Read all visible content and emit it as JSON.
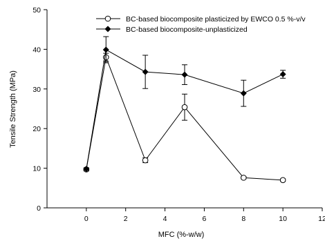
{
  "chart_data": {
    "type": "line",
    "title": "",
    "xlabel": "MFC (%-w/w)",
    "ylabel": "Tensile Strength (MPa)",
    "xlim": [
      -2,
      12
    ],
    "ylim": [
      0,
      50
    ],
    "xticks": [
      0,
      2,
      4,
      6,
      8,
      10,
      12
    ],
    "yticks": [
      0,
      10,
      20,
      30,
      40,
      50
    ],
    "x_tick_labels": [
      "0",
      "2",
      "4",
      "6",
      "8",
      "10",
      "12"
    ],
    "y_tick_labels": [
      "0",
      "10",
      "20",
      "30",
      "40",
      "50"
    ],
    "grid": false,
    "legend_position": "top-right",
    "series": [
      {
        "name": "BC-based biocomposite  plasticized by EWCO 0.5 %-v/v",
        "marker": "open-circle",
        "x": [
          0,
          1,
          3,
          5,
          8,
          10
        ],
        "y": [
          9.7,
          38.0,
          12.0,
          25.4,
          7.6,
          7.0
        ],
        "error": [
          0.4,
          1.0,
          0.6,
          3.3,
          0.3,
          0.3
        ]
      },
      {
        "name": "BC-based biocomposite-unplasticized",
        "marker": "filled-diamond",
        "x": [
          0,
          1,
          3,
          5,
          8,
          10
        ],
        "y": [
          9.8,
          39.9,
          34.3,
          33.6,
          28.9,
          33.7
        ],
        "error": [
          0.3,
          3.3,
          4.2,
          2.5,
          3.3,
          1.0
        ]
      }
    ]
  }
}
